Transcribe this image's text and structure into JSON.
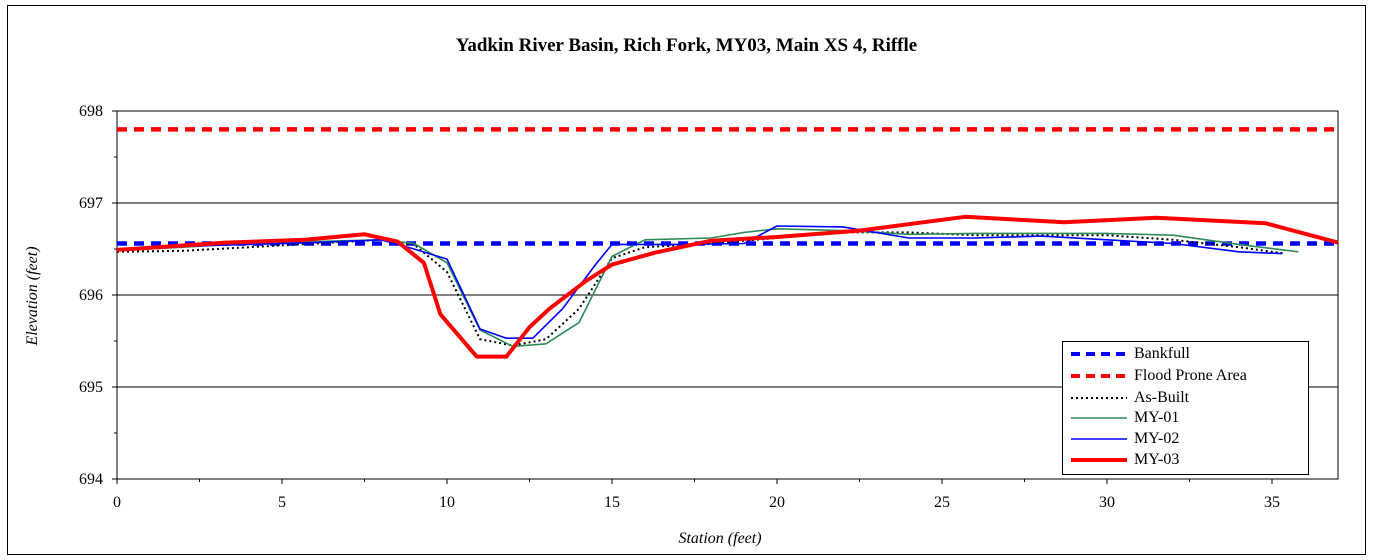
{
  "chart_data": {
    "type": "line",
    "title": "Yadkin River Basin, Rich Fork, MY03, Main XS 4, Riffle",
    "xlabel": "Station (feet)",
    "ylabel": "Elevation (feet)",
    "xlim": [
      0,
      37
    ],
    "ylim": [
      694,
      698
    ],
    "x_ticks": [
      0,
      5,
      10,
      15,
      20,
      25,
      30,
      35
    ],
    "y_ticks": [
      694,
      695,
      696,
      697,
      698
    ],
    "grid": "horizontal",
    "legend_position": "bottom-right",
    "series": [
      {
        "name": "Bankfull",
        "color": "#0000ff",
        "style": "dashed-thick",
        "x": [
          0,
          37
        ],
        "y": [
          696.56,
          696.56
        ]
      },
      {
        "name": "Flood Prone Area",
        "color": "#ff0000",
        "style": "dashed-thick",
        "x": [
          0,
          37
        ],
        "y": [
          697.8,
          697.8
        ]
      },
      {
        "name": "As-Built",
        "color": "#000000",
        "style": "dotted",
        "x": [
          0,
          2,
          4,
          6,
          8,
          9,
          10,
          11,
          12,
          13,
          14,
          15,
          16,
          18,
          20,
          22,
          24,
          26,
          28,
          30,
          32,
          34,
          35.4
        ],
        "y": [
          696.47,
          696.48,
          696.52,
          696.56,
          696.6,
          696.55,
          696.25,
          695.52,
          695.45,
          695.52,
          695.85,
          696.4,
          696.52,
          696.56,
          696.62,
          696.68,
          696.68,
          696.65,
          696.65,
          696.65,
          696.6,
          696.52,
          696.45
        ]
      },
      {
        "name": "MY-01",
        "color": "#2e8b57",
        "style": "solid",
        "x": [
          0,
          2,
          4,
          6,
          8,
          9,
          10,
          11,
          12,
          13,
          14,
          15,
          16,
          18,
          19,
          20,
          22,
          24,
          26,
          28,
          30,
          32,
          34,
          35.8
        ],
        "y": [
          696.48,
          696.52,
          696.56,
          696.58,
          696.6,
          696.56,
          696.35,
          695.62,
          695.44,
          695.47,
          695.7,
          696.42,
          696.6,
          696.62,
          696.68,
          696.72,
          696.7,
          696.66,
          696.67,
          696.67,
          696.67,
          696.65,
          696.55,
          696.47
        ]
      },
      {
        "name": "MY-02",
        "color": "#0000ff",
        "style": "solid",
        "x": [
          0,
          2,
          4,
          6,
          8,
          9,
          10,
          11,
          11.8,
          12.6,
          13.5,
          14.5,
          15,
          16,
          17,
          19,
          20,
          22,
          24,
          26,
          28,
          30,
          32,
          34,
          35.3
        ],
        "y": [
          696.49,
          696.53,
          696.55,
          696.57,
          696.6,
          696.5,
          696.39,
          695.63,
          695.53,
          695.53,
          695.85,
          696.33,
          696.55,
          696.55,
          696.55,
          696.56,
          696.75,
          696.74,
          696.62,
          696.62,
          696.64,
          696.6,
          696.56,
          696.47,
          696.45
        ]
      },
      {
        "name": "MY-03",
        "color": "#ff0000",
        "style": "solid-thick",
        "x": [
          0,
          3.3,
          5.7,
          7.5,
          8.5,
          9.3,
          9.8,
          10.9,
          11.8,
          12.5,
          13.1,
          14.2,
          15,
          16.3,
          18,
          20,
          22.5,
          25.7,
          28.7,
          31.5,
          34.8,
          37
        ],
        "y": [
          696.49,
          696.57,
          696.6,
          696.66,
          696.58,
          696.35,
          695.79,
          695.33,
          695.33,
          695.65,
          695.85,
          696.15,
          696.33,
          696.46,
          696.59,
          696.63,
          696.7,
          696.85,
          696.79,
          696.84,
          696.78,
          696.57
        ]
      }
    ]
  }
}
